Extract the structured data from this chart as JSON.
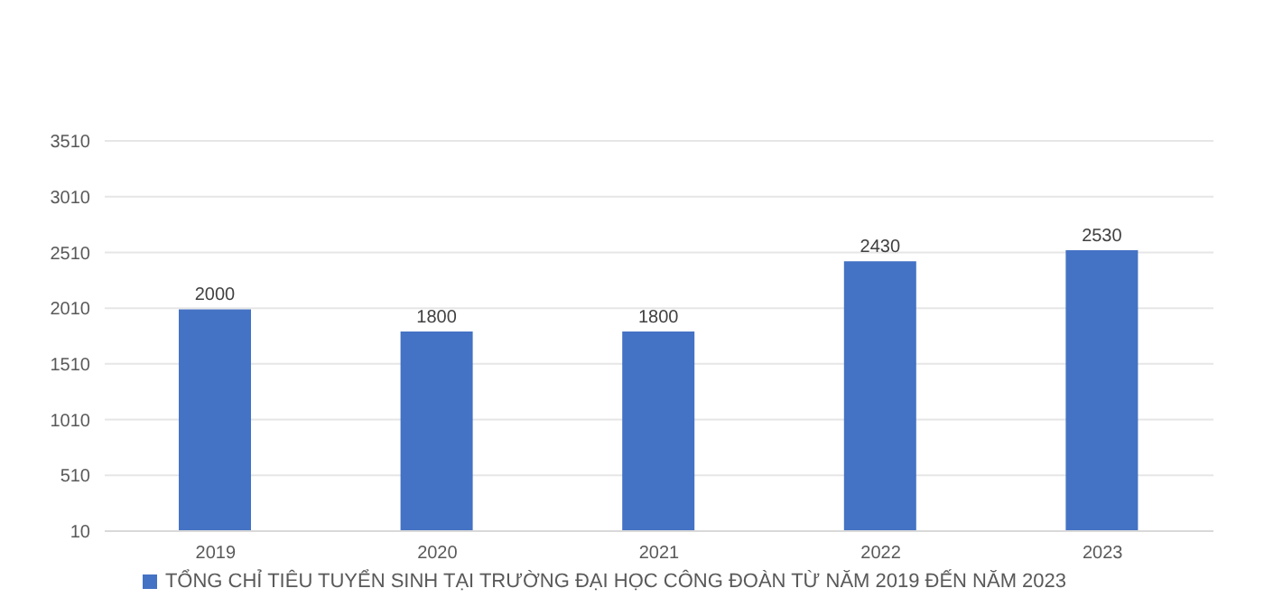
{
  "chart_data": {
    "type": "bar",
    "categories": [
      "2019",
      "2020",
      "2021",
      "2022",
      "2023"
    ],
    "series": [
      {
        "name": "TỔNG CHỈ TIÊU TUYỂN SINH TẠI TRƯỜNG ĐẠI HỌC CÔNG ĐOÀN TỪ NĂM 2019 ĐẾN NĂM 2023",
        "color": "#4472c4",
        "values": [
          2000,
          1800,
          1800,
          2430,
          2530
        ]
      }
    ],
    "ylim": [
      10,
      3510
    ],
    "yticks": [
      10,
      510,
      1010,
      1510,
      2010,
      2510,
      3010,
      3510
    ],
    "grid": "y",
    "data_labels": true,
    "legend": "bottom"
  }
}
